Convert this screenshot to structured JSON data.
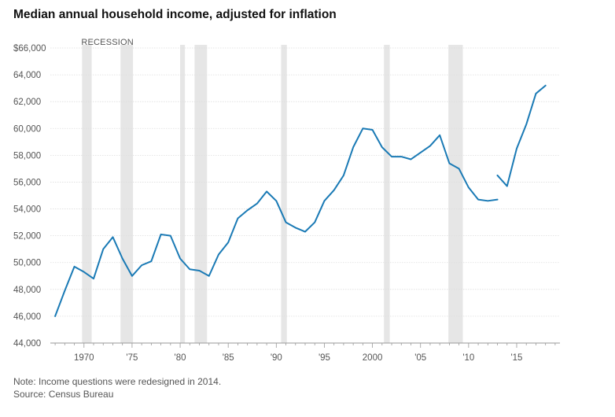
{
  "chart_data": {
    "type": "line",
    "title": "Median annual household income, adjusted for inflation",
    "recession_label": "RECESSION",
    "y_ticks": [
      "$66,000",
      "64,000",
      "62,000",
      "60,000",
      "58,000",
      "56,000",
      "54,000",
      "52,000",
      "50,000",
      "48,000",
      "46,000",
      "44,000"
    ],
    "y_tick_values": [
      66000,
      64000,
      62000,
      60000,
      58000,
      56000,
      54000,
      52000,
      50000,
      48000,
      46000,
      44000
    ],
    "x_ticks": [
      "1970",
      "'75",
      "'80",
      "'85",
      "'90",
      "'95",
      "2000",
      "'05",
      "'10",
      "'15"
    ],
    "x_tick_values": [
      1970,
      1975,
      1980,
      1985,
      1990,
      1995,
      2000,
      2005,
      2010,
      2015
    ],
    "xlim": [
      1966.5,
      2019.5
    ],
    "ylim": [
      44000,
      66000
    ],
    "recessions": [
      [
        1969.8,
        1970.8
      ],
      [
        1973.8,
        1975.1
      ],
      [
        1980.0,
        1980.5
      ],
      [
        1981.5,
        1982.8
      ],
      [
        1990.5,
        1991.1
      ],
      [
        2001.2,
        2001.8
      ],
      [
        2007.9,
        2009.4
      ]
    ],
    "series": [
      {
        "values": [
          [
            1967,
            46000
          ],
          [
            1968,
            47900
          ],
          [
            1969,
            49700
          ],
          [
            1970,
            49300
          ],
          [
            1971,
            48800
          ],
          [
            1972,
            51000
          ],
          [
            1973,
            51900
          ],
          [
            1974,
            50300
          ],
          [
            1975,
            49000
          ],
          [
            1976,
            49800
          ],
          [
            1977,
            50100
          ],
          [
            1978,
            52100
          ],
          [
            1979,
            52000
          ],
          [
            1980,
            50300
          ],
          [
            1981,
            49500
          ],
          [
            1982,
            49400
          ],
          [
            1983,
            49000
          ],
          [
            1984,
            50600
          ],
          [
            1985,
            51500
          ],
          [
            1986,
            53300
          ],
          [
            1987,
            53900
          ],
          [
            1988,
            54400
          ],
          [
            1989,
            55300
          ],
          [
            1990,
            54600
          ],
          [
            1991,
            53000
          ],
          [
            1992,
            52600
          ],
          [
            1993,
            52300
          ],
          [
            1994,
            53000
          ],
          [
            1995,
            54600
          ],
          [
            1996,
            55400
          ],
          [
            1997,
            56500
          ],
          [
            1998,
            58600
          ],
          [
            1999,
            60000
          ],
          [
            2000,
            59900
          ],
          [
            2001,
            58600
          ],
          [
            2002,
            57900
          ],
          [
            2003,
            57900
          ],
          [
            2004,
            57700
          ],
          [
            2005,
            58200
          ],
          [
            2006,
            58700
          ],
          [
            2007,
            59500
          ],
          [
            2008,
            57400
          ],
          [
            2009,
            57000
          ],
          [
            2010,
            55600
          ],
          [
            2011,
            54700
          ],
          [
            2012,
            54600
          ],
          [
            2013,
            54700
          ]
        ]
      },
      {
        "values": [
          [
            2013,
            56500
          ],
          [
            2014,
            55700
          ],
          [
            2015,
            58500
          ],
          [
            2016,
            60300
          ],
          [
            2017,
            62600
          ],
          [
            2018,
            63200
          ]
        ]
      }
    ],
    "colors": {
      "line": "#1a7ab5",
      "recession": "#e6e6e6",
      "grid": "#dddddd",
      "axis": "#999999"
    }
  },
  "footer": {
    "note": "Note: Income questions were redesigned in 2014.",
    "source": "Source: Census Bureau"
  }
}
